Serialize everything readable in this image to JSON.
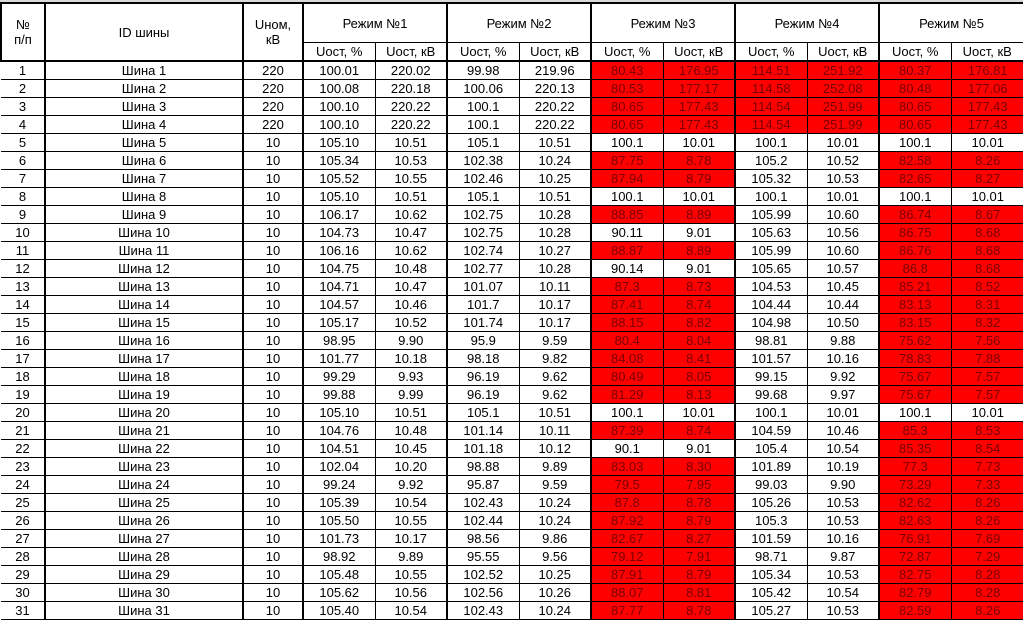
{
  "header": {
    "num": "№ п/п",
    "id": "ID шины",
    "unom": "Uном, кВ",
    "modes": [
      "Режим №1",
      "Режим №2",
      "Режим №3",
      "Режим №4",
      "Режим №5"
    ],
    "sub_pct": "Uост, %",
    "sub_kv": "Uост, кВ"
  },
  "highlight_color": "#ff0000",
  "rows": [
    {
      "n": "1",
      "id": "Шина 1",
      "u": "220",
      "v": [
        "100.01",
        "220.02",
        "99.98",
        "219.96",
        "80.43",
        "176.95",
        "114.51",
        "251.92",
        "80.37",
        "176.81"
      ],
      "red": [
        false,
        false,
        true,
        true,
        true
      ]
    },
    {
      "n": "2",
      "id": "Шина 2",
      "u": "220",
      "v": [
        "100.08",
        "220.18",
        "100.06",
        "220.13",
        "80.53",
        "177.17",
        "114.58",
        "252.08",
        "80.48",
        "177.06"
      ],
      "red": [
        false,
        false,
        true,
        true,
        true
      ]
    },
    {
      "n": "3",
      "id": "Шина 3",
      "u": "220",
      "v": [
        "100.10",
        "220.22",
        "100.1",
        "220.22",
        "80.65",
        "177.43",
        "114.54",
        "251.99",
        "80.65",
        "177.43"
      ],
      "red": [
        false,
        false,
        true,
        true,
        true
      ]
    },
    {
      "n": "4",
      "id": "Шина 4",
      "u": "220",
      "v": [
        "100.10",
        "220.22",
        "100.1",
        "220.22",
        "80.65",
        "177.43",
        "114.54",
        "251.99",
        "80.65",
        "177.43"
      ],
      "red": [
        false,
        false,
        true,
        true,
        true
      ]
    },
    {
      "n": "5",
      "id": "Шина 5",
      "u": "10",
      "v": [
        "105.10",
        "10.51",
        "105.1",
        "10.51",
        "100.1",
        "10.01",
        "100.1",
        "10.01",
        "100.1",
        "10.01"
      ],
      "red": [
        false,
        false,
        false,
        false,
        false
      ]
    },
    {
      "n": "6",
      "id": "Шина 6",
      "u": "10",
      "v": [
        "105.34",
        "10.53",
        "102.38",
        "10.24",
        "87.75",
        "8.78",
        "105.2",
        "10.52",
        "82.58",
        "8.26"
      ],
      "red": [
        false,
        false,
        true,
        false,
        true
      ]
    },
    {
      "n": "7",
      "id": "Шина 7",
      "u": "10",
      "v": [
        "105.52",
        "10.55",
        "102.46",
        "10.25",
        "87.94",
        "8.79",
        "105.32",
        "10.53",
        "82.65",
        "8.27"
      ],
      "red": [
        false,
        false,
        true,
        false,
        true
      ]
    },
    {
      "n": "8",
      "id": "Шина 8",
      "u": "10",
      "v": [
        "105.10",
        "10.51",
        "105.1",
        "10.51",
        "100.1",
        "10.01",
        "100.1",
        "10.01",
        "100.1",
        "10.01"
      ],
      "red": [
        false,
        false,
        false,
        false,
        false
      ]
    },
    {
      "n": "9",
      "id": "Шина 9",
      "u": "10",
      "v": [
        "106.17",
        "10.62",
        "102.75",
        "10.28",
        "88.85",
        "8.89",
        "105.99",
        "10.60",
        "86.74",
        "8.67"
      ],
      "red": [
        false,
        false,
        true,
        false,
        true
      ]
    },
    {
      "n": "10",
      "id": "Шина 10",
      "u": "10",
      "v": [
        "104.73",
        "10.47",
        "102.75",
        "10.28",
        "90.11",
        "9.01",
        "105.63",
        "10.56",
        "86.75",
        "8.68"
      ],
      "red": [
        false,
        false,
        false,
        false,
        true
      ]
    },
    {
      "n": "11",
      "id": "Шина 11",
      "u": "10",
      "v": [
        "106.16",
        "10.62",
        "102.74",
        "10.27",
        "88.87",
        "8.89",
        "105.99",
        "10.60",
        "86.76",
        "8.68"
      ],
      "red": [
        false,
        false,
        true,
        false,
        true
      ]
    },
    {
      "n": "12",
      "id": "Шина 12",
      "u": "10",
      "v": [
        "104.75",
        "10.48",
        "102.77",
        "10.28",
        "90.14",
        "9.01",
        "105.65",
        "10.57",
        "86.8",
        "8.68"
      ],
      "red": [
        false,
        false,
        false,
        false,
        true
      ]
    },
    {
      "n": "13",
      "id": "Шина 13",
      "u": "10",
      "v": [
        "104.71",
        "10.47",
        "101.07",
        "10.11",
        "87.3",
        "8.73",
        "104.53",
        "10.45",
        "85.21",
        "8.52"
      ],
      "red": [
        false,
        false,
        true,
        false,
        true
      ]
    },
    {
      "n": "14",
      "id": "Шина 14",
      "u": "10",
      "v": [
        "104.57",
        "10.46",
        "101.7",
        "10.17",
        "87.41",
        "8.74",
        "104.44",
        "10.44",
        "83.13",
        "8.31"
      ],
      "red": [
        false,
        false,
        true,
        false,
        true
      ]
    },
    {
      "n": "15",
      "id": "Шина 15",
      "u": "10",
      "v": [
        "105.17",
        "10.52",
        "101.74",
        "10.17",
        "88.15",
        "8.82",
        "104.98",
        "10.50",
        "83.15",
        "8.32"
      ],
      "red": [
        false,
        false,
        true,
        false,
        true
      ]
    },
    {
      "n": "16",
      "id": "Шина 16",
      "u": "10",
      "v": [
        "98.95",
        "9.90",
        "95.9",
        "9.59",
        "80.4",
        "8.04",
        "98.81",
        "9.88",
        "75.62",
        "7.56"
      ],
      "red": [
        false,
        false,
        true,
        false,
        true
      ]
    },
    {
      "n": "17",
      "id": "Шина 17",
      "u": "10",
      "v": [
        "101.77",
        "10.18",
        "98.18",
        "9.82",
        "84.08",
        "8.41",
        "101.57",
        "10.16",
        "78.83",
        "7.88"
      ],
      "red": [
        false,
        false,
        true,
        false,
        true
      ]
    },
    {
      "n": "18",
      "id": "Шина 18",
      "u": "10",
      "v": [
        "99.29",
        "9.93",
        "96.19",
        "9.62",
        "80.49",
        "8.05",
        "99.15",
        "9.92",
        "75.67",
        "7.57"
      ],
      "red": [
        false,
        false,
        true,
        false,
        true
      ]
    },
    {
      "n": "19",
      "id": "Шина 19",
      "u": "10",
      "v": [
        "99.88",
        "9.99",
        "96.19",
        "9.62",
        "81.29",
        "8.13",
        "99.68",
        "9.97",
        "75.67",
        "7.57"
      ],
      "red": [
        false,
        false,
        true,
        false,
        true
      ]
    },
    {
      "n": "20",
      "id": "Шина 20",
      "u": "10",
      "v": [
        "105.10",
        "10.51",
        "105.1",
        "10.51",
        "100.1",
        "10.01",
        "100.1",
        "10.01",
        "100.1",
        "10.01"
      ],
      "red": [
        false,
        false,
        false,
        false,
        false
      ]
    },
    {
      "n": "21",
      "id": "Шина 21",
      "u": "10",
      "v": [
        "104.76",
        "10.48",
        "101.14",
        "10.11",
        "87.39",
        "8.74",
        "104.59",
        "10.46",
        "85.3",
        "8.53"
      ],
      "red": [
        false,
        false,
        true,
        false,
        true
      ]
    },
    {
      "n": "22",
      "id": "Шина 22",
      "u": "10",
      "v": [
        "104.51",
        "10.45",
        "101.18",
        "10.12",
        "90.1",
        "9.01",
        "105.4",
        "10.54",
        "85.35",
        "8.54"
      ],
      "red": [
        false,
        false,
        false,
        false,
        true
      ]
    },
    {
      "n": "23",
      "id": "Шина 23",
      "u": "10",
      "v": [
        "102.04",
        "10.20",
        "98.88",
        "9.89",
        "83.03",
        "8.30",
        "101.89",
        "10.19",
        "77.3",
        "7.73"
      ],
      "red": [
        false,
        false,
        true,
        false,
        true
      ]
    },
    {
      "n": "24",
      "id": "Шина 24",
      "u": "10",
      "v": [
        "99.24",
        "9.92",
        "95.87",
        "9.59",
        "79.5",
        "7.95",
        "99.03",
        "9.90",
        "73.29",
        "7.33"
      ],
      "red": [
        false,
        false,
        true,
        false,
        true
      ]
    },
    {
      "n": "25",
      "id": "Шина 25",
      "u": "10",
      "v": [
        "105.39",
        "10.54",
        "102.43",
        "10.24",
        "87.8",
        "8.78",
        "105.26",
        "10.53",
        "82.62",
        "8.26"
      ],
      "red": [
        false,
        false,
        true,
        false,
        true
      ]
    },
    {
      "n": "26",
      "id": "Шина 26",
      "u": "10",
      "v": [
        "105.50",
        "10.55",
        "102.44",
        "10.24",
        "87.92",
        "8.79",
        "105.3",
        "10.53",
        "82.63",
        "8.26"
      ],
      "red": [
        false,
        false,
        true,
        false,
        true
      ]
    },
    {
      "n": "27",
      "id": "Шина 27",
      "u": "10",
      "v": [
        "101.73",
        "10.17",
        "98.56",
        "9.86",
        "82.67",
        "8.27",
        "101.59",
        "10.16",
        "76.91",
        "7.69"
      ],
      "red": [
        false,
        false,
        true,
        false,
        true
      ]
    },
    {
      "n": "28",
      "id": "Шина 28",
      "u": "10",
      "v": [
        "98.92",
        "9.89",
        "95.55",
        "9.56",
        "79.12",
        "7.91",
        "98.71",
        "9.87",
        "72.87",
        "7.29"
      ],
      "red": [
        false,
        false,
        true,
        false,
        true
      ]
    },
    {
      "n": "29",
      "id": "Шина 29",
      "u": "10",
      "v": [
        "105.48",
        "10.55",
        "102.52",
        "10.25",
        "87.91",
        "8.79",
        "105.34",
        "10.53",
        "82.75",
        "8.28"
      ],
      "red": [
        false,
        false,
        true,
        false,
        true
      ]
    },
    {
      "n": "30",
      "id": "Шина 30",
      "u": "10",
      "v": [
        "105.62",
        "10.56",
        "102.56",
        "10.26",
        "88.07",
        "8.81",
        "105.42",
        "10.54",
        "82.79",
        "8.28"
      ],
      "red": [
        false,
        false,
        true,
        false,
        true
      ]
    },
    {
      "n": "31",
      "id": "Шина 31",
      "u": "10",
      "v": [
        "105.40",
        "10.54",
        "102.43",
        "10.24",
        "87.77",
        "8.78",
        "105.27",
        "10.53",
        "82.59",
        "8.26"
      ],
      "red": [
        false,
        false,
        true,
        false,
        true
      ]
    }
  ]
}
